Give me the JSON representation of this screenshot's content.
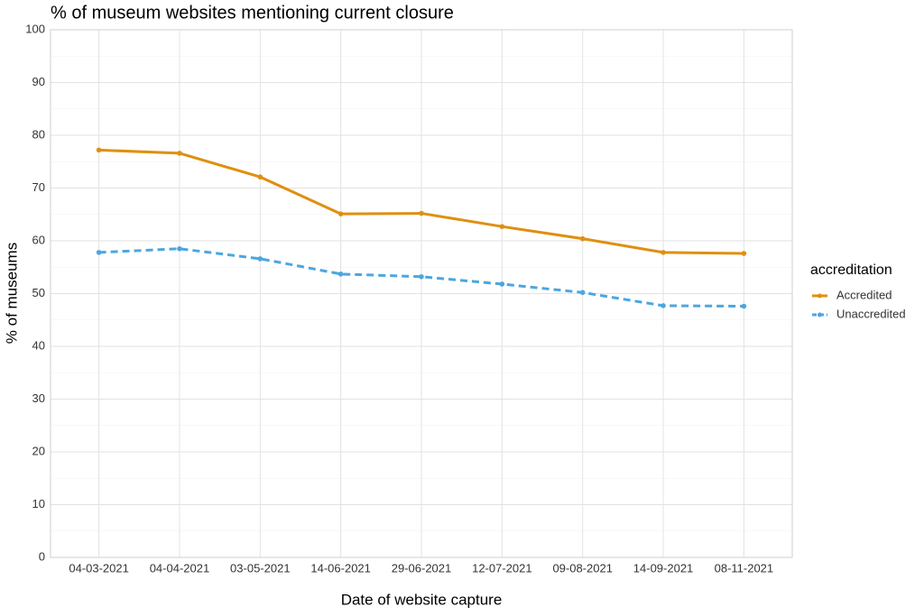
{
  "chart_data": {
    "type": "line",
    "title": "% of museum websites mentioning current closure",
    "x_label": "Date of website capture",
    "y_label": "% of museums",
    "categories": [
      "04-03-2021",
      "04-04-2021",
      "03-05-2021",
      "14-06-2021",
      "29-06-2021",
      "12-07-2021",
      "09-08-2021",
      "14-09-2021",
      "08-11-2021"
    ],
    "series": [
      {
        "name": "Accredited",
        "color": "#e08f10",
        "dash": "solid",
        "values": [
          77.2,
          76.6,
          72.1,
          65.1,
          65.2,
          62.7,
          60.4,
          57.8,
          57.6
        ]
      },
      {
        "name": "Unaccredited",
        "color": "#4ca6e0",
        "dash": "dashed",
        "values": [
          57.8,
          58.5,
          56.6,
          53.7,
          53.2,
          51.8,
          50.2,
          47.7,
          47.6
        ]
      }
    ],
    "legend_title": "accreditation",
    "legend": "right",
    "ylim": [
      0,
      100
    ],
    "yticks": [
      0,
      10,
      20,
      30,
      40,
      50,
      60,
      70,
      80,
      90,
      100
    ],
    "grid": true
  }
}
